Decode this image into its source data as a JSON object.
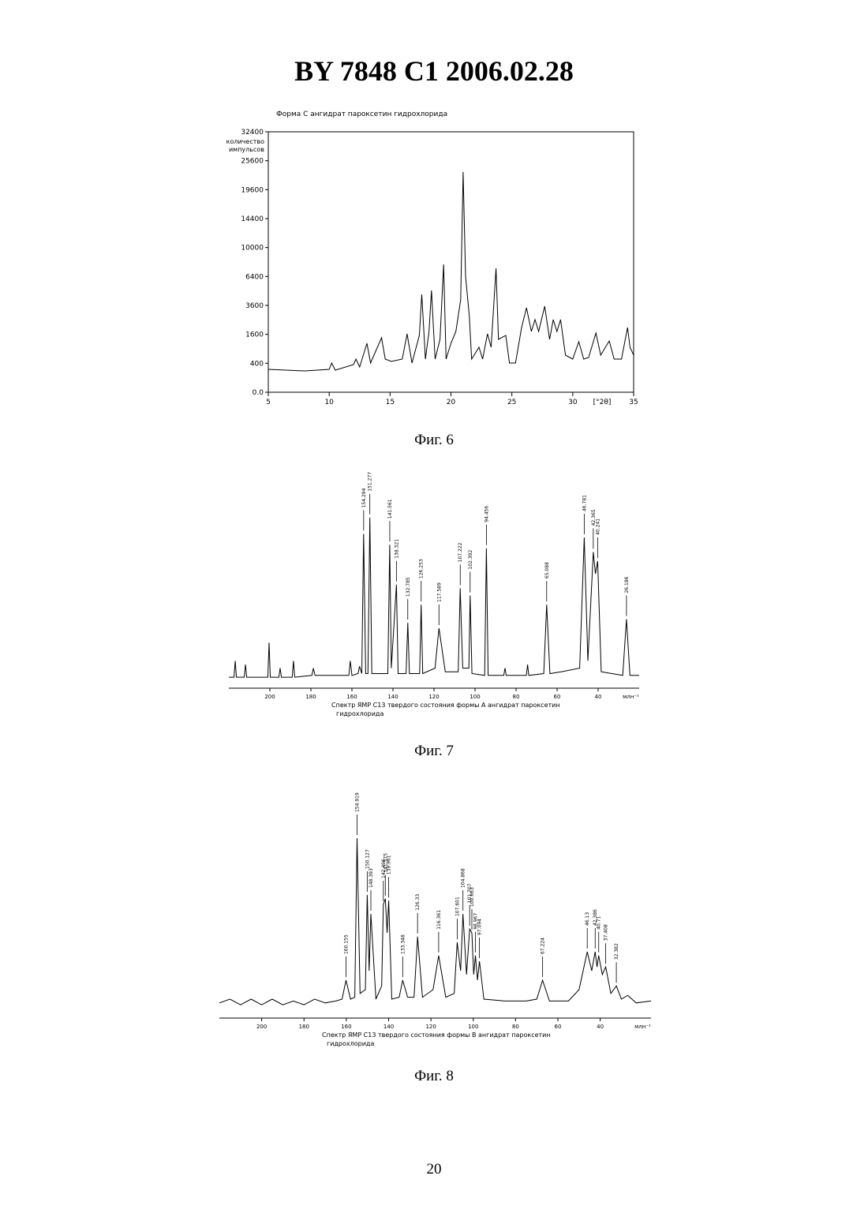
{
  "header": {
    "title": "BY  7848  C1  2006.02.28"
  },
  "chart_data": [
    {
      "type": "line",
      "title": "Форма С ангидрат пароксетин гидрохлорида",
      "ylabel": [
        "количество",
        "импульсов"
      ],
      "xlabel": "[°2θ]",
      "caption": "Фиг. 6",
      "yscale": "sqrt",
      "color": "#000000",
      "frame": true,
      "xlim": [
        5,
        35
      ],
      "xticks": [
        5,
        10,
        15,
        20,
        25,
        30,
        35
      ],
      "ylim": [
        0,
        32400
      ],
      "yticks": [
        {
          "value": 0,
          "label": "0.0"
        },
        400,
        1600,
        3600,
        6400,
        10000,
        14400,
        19600,
        25600,
        32400
      ],
      "x": [
        5,
        8,
        10,
        10.2,
        10.5,
        12,
        12.2,
        12.5,
        13.1,
        13.4,
        14.3,
        14.6,
        15.1,
        16,
        16.4,
        16.8,
        17.4,
        17.6,
        17.9,
        18.2,
        18.4,
        18.7,
        19.1,
        19.4,
        19.6,
        20,
        20.4,
        20.8,
        21,
        21.2,
        21.5,
        21.7,
        22.3,
        22.6,
        23,
        23.3,
        23.7,
        23.9,
        24.5,
        24.8,
        25.3,
        25.8,
        26.2,
        26.6,
        26.9,
        27.2,
        27.7,
        28.1,
        28.4,
        28.7,
        29,
        29.4,
        30,
        30.5,
        30.9,
        31.3,
        31.9,
        32.3,
        33,
        33.4,
        34,
        34.5,
        34.7,
        35
      ],
      "values": [
        250,
        217,
        250,
        407,
        233,
        364,
        525,
        305,
        1144,
        407,
        1417,
        525,
        452,
        525,
        1629,
        407,
        1542,
        4575,
        525,
        1764,
        4952,
        525,
        1336,
        7809,
        525,
        1144,
        1764,
        4073,
        23165,
        6430,
        2800,
        525,
        966,
        525,
        1629,
        966,
        7335,
        1336,
        1542,
        407,
        407,
        2001,
        3407,
        1764,
        2519,
        1764,
        3536,
        1336,
        2519,
        1764,
        2519,
        657,
        525,
        1219,
        525,
        576,
        1674,
        657,
        1257,
        525,
        525,
        2001,
        966,
        657
      ]
    },
    {
      "type": "spectrum",
      "xlabel": [
        "Спектр ЯМР С13 твердого состояния формы А ангидрат пароксетин",
        "гидрохлорида"
      ],
      "unit": "млн⁻¹",
      "caption": "Фиг. 7",
      "color": "#000000",
      "xlim": [
        220,
        20
      ],
      "xticks": [
        200,
        180,
        160,
        140,
        120,
        100,
        80,
        60,
        40
      ],
      "ylim": [
        0,
        100
      ],
      "x": [
        220,
        217.5,
        216.9,
        216.3,
        212.5,
        211.9,
        211.3,
        201,
        200.4,
        199.8,
        195.6,
        195,
        194.4,
        189.1,
        188.5,
        187.9,
        179.5,
        178.8,
        178,
        161.5,
        160.8,
        160,
        157,
        156.3,
        155.2,
        154.294,
        153.3,
        152.2,
        151.277,
        150.3,
        142.5,
        141.561,
        140.8,
        138.321,
        137.5,
        133.6,
        132.785,
        132,
        127,
        126.253,
        125.5,
        119.5,
        117.589,
        114.5,
        108.2,
        107.222,
        106,
        103,
        102.392,
        101.5,
        95.3,
        94.456,
        93.6,
        86,
        85.4,
        84.8,
        75,
        74.4,
        73.8,
        66.5,
        65.088,
        63.5,
        58,
        49,
        46.781,
        45,
        42.365,
        41.3,
        40.241,
        38.5,
        28,
        26.186,
        24.5,
        20
      ],
      "values": [
        3,
        3,
        12,
        3,
        3,
        10,
        3,
        3,
        22,
        3,
        3,
        8,
        3,
        3,
        12,
        3,
        4,
        8,
        4,
        4,
        12,
        4,
        5,
        9,
        5,
        82,
        5,
        5,
        91,
        5,
        5,
        76,
        8,
        54,
        5,
        5,
        33,
        5,
        5,
        43,
        5,
        8,
        30,
        6,
        6,
        52,
        8,
        8,
        48,
        5,
        4,
        74,
        4,
        4,
        8,
        4,
        4,
        10,
        4,
        5,
        43,
        5,
        6,
        8,
        80,
        12,
        72,
        60,
        67,
        6,
        4,
        35,
        4,
        4
      ],
      "peak_labels": [
        154.294,
        151.277,
        141.561,
        138.321,
        132.785,
        126.253,
        117.589,
        107.222,
        102.392,
        94.456,
        65.088,
        46.781,
        42.365,
        40.241,
        26.186
      ]
    },
    {
      "type": "spectrum",
      "xlabel": [
        "Спектр ЯМР С13 твердого состояния формы В ангидрат пароксетин",
        "гидрохлорида"
      ],
      "unit": "млн⁻¹",
      "caption": "Фиг. 8",
      "color": "#000000",
      "xlim": [
        220,
        16
      ],
      "xticks": [
        200,
        180,
        160,
        140,
        120,
        100,
        80,
        60,
        40
      ],
      "ylim": [
        0,
        100
      ],
      "x": [
        220,
        215,
        210,
        205,
        200,
        195,
        190,
        185,
        180,
        175,
        170,
        165,
        162,
        160.155,
        158,
        156,
        154.919,
        153.5,
        151,
        150.127,
        149.2,
        148.393,
        146,
        143.3,
        142.496,
        141.575,
        140.7,
        139.961,
        138.5,
        135,
        133.348,
        131,
        128,
        126.33,
        124,
        119,
        116.361,
        113,
        109,
        107.601,
        106,
        104.868,
        103.2,
        101.707,
        100.663,
        99.8,
        98.967,
        98,
        97.094,
        95,
        85,
        75,
        70,
        67.224,
        64,
        55,
        50,
        46.13,
        44,
        42.386,
        41.5,
        40.71,
        39,
        37.408,
        35,
        32.382,
        30,
        27,
        23,
        16
      ],
      "values": [
        3,
        5,
        2,
        5,
        2,
        5,
        2,
        4,
        2,
        5,
        3,
        4,
        5,
        15,
        5,
        6,
        90,
        8,
        10,
        60,
        20,
        50,
        5,
        12,
        55,
        58,
        40,
        57,
        5,
        6,
        15,
        6,
        6,
        38,
        6,
        10,
        28,
        6,
        8,
        35,
        20,
        50,
        18,
        42,
        40,
        18,
        28,
        15,
        25,
        5,
        4,
        4,
        5,
        15,
        4,
        4,
        10,
        30,
        20,
        30,
        22,
        28,
        18,
        22,
        8,
        12,
        5,
        7,
        3,
        4
      ],
      "peak_labels": [
        160.155,
        154.919,
        150.127,
        148.393,
        142.496,
        141.575,
        139.961,
        133.348,
        126.33,
        116.361,
        107.601,
        104.868,
        101.707,
        100.663,
        98.967,
        97.094,
        67.224,
        46.13,
        42.386,
        40.71,
        37.408,
        32.382
      ]
    }
  ],
  "page_number": "20"
}
